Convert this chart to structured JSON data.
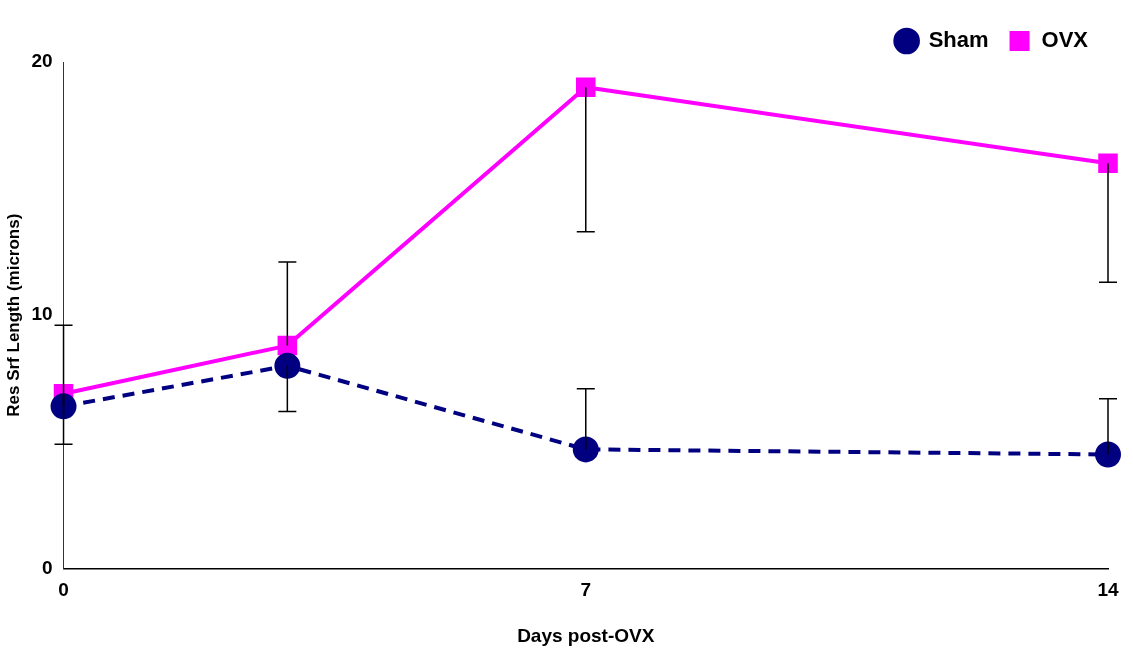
{
  "chart_data": {
    "type": "line",
    "xlabel": "Days post-OVX",
    "ylabel": "Res Srf Length (microns)",
    "x": [
      0,
      3,
      7,
      14
    ],
    "xlim": [
      0,
      14
    ],
    "xticks": [
      0,
      7,
      14
    ],
    "ylim": [
      0,
      20
    ],
    "yticks": [
      0,
      10,
      20
    ],
    "grid": false,
    "legend": "top right",
    "series": [
      {
        "name": "Sham",
        "color": "#000080",
        "marker": "circle",
        "line_style": "dashed",
        "values": [
          6.4,
          8.0,
          4.7,
          4.5
        ],
        "errors": [
          [
            6.4,
            9.6
          ],
          [
            6.2,
            8.0
          ],
          [
            4.7,
            7.1
          ],
          [
            4.5,
            6.7
          ]
        ]
      },
      {
        "name": "OVX",
        "color": "#ff00ff",
        "marker": "square",
        "line_style": "solid",
        "values": [
          6.9,
          8.8,
          19.0,
          16.0
        ],
        "errors": [
          [
            4.9,
            6.9
          ],
          [
            8.8,
            12.1
          ],
          [
            13.3,
            19.0
          ],
          [
            11.3,
            16.0
          ]
        ]
      }
    ]
  }
}
